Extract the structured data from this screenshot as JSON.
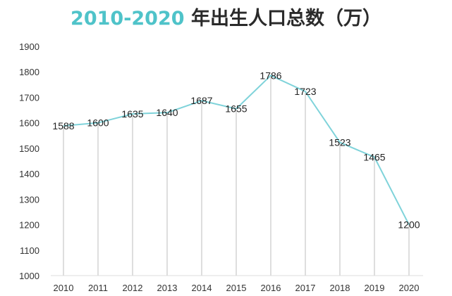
{
  "chart_data": {
    "type": "line",
    "title_accent": "2010-2020",
    "title_rest": " 年出生人口总数（万）",
    "x": [
      "2010",
      "2011",
      "2012",
      "2013",
      "2014",
      "2015",
      "2016",
      "2017",
      "2018",
      "2019",
      "2020"
    ],
    "series": [
      {
        "values": [
          1588,
          1600,
          1635,
          1640,
          1687,
          1655,
          1786,
          1723,
          1523,
          1465,
          1200
        ]
      }
    ],
    "ylim": [
      1000,
      1900
    ],
    "yticks": [
      1000,
      1100,
      1200,
      1300,
      1400,
      1500,
      1600,
      1700,
      1800,
      1900
    ],
    "grid": false,
    "colors": {
      "line": "#7fd3da",
      "drop": "#c8c8c8",
      "accent": "#4fc3c9"
    }
  }
}
